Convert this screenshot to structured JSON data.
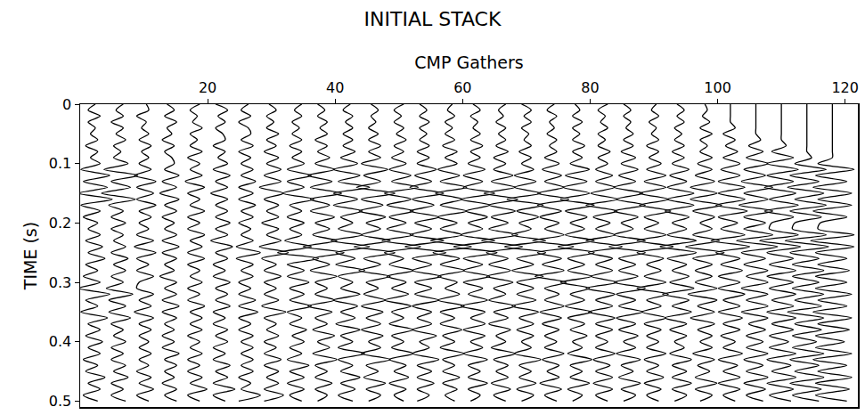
{
  "chart_data": {
    "type": "wiggle",
    "title": "INITIAL STACK",
    "x_label": "CMP Gathers",
    "y_label": "TIME (s)",
    "color": "#000000",
    "grid": false,
    "xlim": [
      0,
      122
    ],
    "ylim": [
      0.51,
      0
    ],
    "xticks": [
      20,
      40,
      60,
      80,
      100,
      120
    ],
    "yticks": [
      0,
      0.1,
      0.2,
      0.3,
      0.4,
      0.5
    ],
    "x": [
      2,
      6,
      10,
      14,
      18,
      22,
      26,
      30,
      34,
      38,
      42,
      46,
      50,
      54,
      58,
      62,
      66,
      70,
      74,
      78,
      82,
      86,
      90,
      94,
      98,
      102,
      106,
      110,
      114,
      118
    ],
    "y": [
      0,
      0.01,
      0.02,
      0.03,
      0.04,
      0.05,
      0.06,
      0.07,
      0.08,
      0.09,
      0.1,
      0.11,
      0.12,
      0.13,
      0.14,
      0.15,
      0.16,
      0.17,
      0.18,
      0.19,
      0.2,
      0.21,
      0.22,
      0.23,
      0.24,
      0.25,
      0.26,
      0.27,
      0.28,
      0.29,
      0.3,
      0.31,
      0.32,
      0.33,
      0.34,
      0.35,
      0.36,
      0.37,
      0.38,
      0.39,
      0.4,
      0.41,
      0.42,
      0.43,
      0.44,
      0.45,
      0.46,
      0.47,
      0.48,
      0.49,
      0.5
    ],
    "amplitudes": [
      [
        1,
        -2,
        3,
        -2,
        1,
        -1,
        2,
        -3,
        2,
        -1,
        3,
        -5,
        7,
        -4,
        6,
        -6,
        8,
        -5,
        3,
        -4,
        2,
        -2,
        3,
        -3,
        4,
        -2,
        5,
        -3,
        2,
        -4,
        3,
        -6,
        7,
        -3,
        2,
        -5,
        6,
        -2,
        3,
        -3,
        4,
        -2,
        3,
        -4,
        2,
        -3,
        5,
        -2,
        3,
        -4,
        2
      ],
      [
        2,
        -1,
        2,
        -3,
        2,
        -1,
        3,
        -2,
        1,
        -2,
        4,
        -6,
        8,
        -3,
        5,
        -7,
        7,
        -4,
        2,
        -3,
        3,
        -3,
        2,
        -2,
        3,
        -3,
        4,
        -2,
        3,
        -3,
        2,
        -5,
        6,
        -4,
        3,
        -4,
        5,
        -3,
        2,
        -2,
        3,
        -3,
        2,
        -3,
        3,
        -2,
        4,
        -3,
        2,
        -3,
        3
      ],
      [
        1,
        2,
        -3,
        1,
        -1,
        2,
        -2,
        3,
        -1,
        2,
        -2,
        3,
        -4,
        5,
        -3,
        4,
        -3,
        5,
        -2,
        3,
        -2,
        2,
        -3,
        4,
        -4,
        5,
        -3,
        2,
        -3,
        4,
        -2,
        -3,
        4,
        -2,
        3,
        -4,
        4,
        -2,
        3,
        -2,
        2,
        -2,
        3,
        -2,
        2,
        -3,
        3,
        -2,
        4,
        -3,
        2
      ],
      [
        -1,
        2,
        -2,
        3,
        -1,
        1,
        -3,
        2,
        -2,
        1,
        2,
        -2,
        4,
        -3,
        3,
        -4,
        4,
        -2,
        3,
        -3,
        2,
        -2,
        3,
        -3,
        4,
        -3,
        3,
        -2,
        2,
        -4,
        3,
        -2,
        3,
        -3,
        4,
        -3,
        3,
        -2,
        2,
        -3,
        2,
        -3,
        4,
        -2,
        3,
        -2,
        2,
        -3,
        3,
        -2,
        3
      ],
      [
        2,
        -2,
        1,
        -1,
        3,
        -2,
        1,
        -2,
        3,
        -3,
        2,
        -2,
        3,
        -4,
        4,
        -3,
        2,
        -2,
        4,
        -3,
        2,
        -3,
        4,
        -2,
        3,
        -3,
        4,
        -3,
        2,
        -2,
        3,
        -3,
        2,
        -3,
        4,
        -2,
        3,
        -2,
        3,
        -3,
        2,
        -2,
        3,
        -3,
        2,
        -3,
        3,
        -2,
        5,
        -3,
        2
      ],
      [
        -2,
        3,
        -1,
        2,
        -2,
        1,
        2,
        -3,
        2,
        -1,
        3,
        -3,
        4,
        -2,
        3,
        -4,
        3,
        -2,
        3,
        -2,
        4,
        -2,
        3,
        -4,
        5,
        -2,
        3,
        -3,
        2,
        -3,
        4,
        -2,
        3,
        -2,
        4,
        -3,
        2,
        -3,
        3,
        -2,
        3,
        -3,
        2,
        -3,
        4,
        -2,
        3,
        -3,
        6,
        -3,
        2
      ],
      [
        1,
        -2,
        2,
        -3,
        1,
        2,
        -2,
        3,
        -3,
        2,
        -2,
        3,
        -2,
        4,
        -3,
        3,
        -3,
        4,
        -2,
        3,
        -3,
        2,
        -2,
        3,
        -4,
        6,
        -4,
        3,
        -2,
        3,
        -3,
        2,
        -3,
        4,
        -3,
        5,
        -3,
        2,
        -3,
        3,
        -2,
        3,
        -2,
        3,
        -2,
        3,
        -3,
        2,
        -2,
        6,
        -3,
        2
      ],
      [
        -1,
        2,
        -2,
        1,
        -2,
        3,
        -2,
        2,
        -3,
        3,
        -2,
        4,
        -3,
        4,
        -5,
        5,
        -3,
        3,
        -2,
        3,
        -4,
        3,
        -2,
        4,
        -5,
        7,
        -4,
        2,
        -3,
        4,
        -3,
        2,
        -3,
        3,
        -4,
        6,
        -3,
        2,
        -2,
        3,
        -3,
        2,
        -3,
        4,
        -3,
        3,
        -2,
        3,
        -3,
        5,
        -3,
        2
      ],
      [
        2,
        -1,
        2,
        -2,
        1,
        -2,
        2,
        -3,
        2,
        -2,
        3,
        -4,
        6,
        -4,
        3,
        -6,
        7,
        -3,
        2,
        -4,
        3,
        -3,
        2,
        -5,
        6,
        -8,
        9,
        -4,
        3,
        -4,
        5,
        -3,
        3,
        -3,
        6,
        -4,
        2,
        -3,
        4,
        -2,
        3,
        -3,
        2,
        -4,
        5,
        -3,
        3,
        -4,
        3,
        -3,
        2
      ],
      [
        -2,
        1,
        -2,
        2,
        -1,
        2,
        -3,
        2,
        -2,
        3,
        -3,
        5,
        -6,
        4,
        -5,
        8,
        -5,
        3,
        -5,
        5,
        -3,
        3,
        -4,
        6,
        -8,
        9,
        -4,
        3,
        -5,
        6,
        -3,
        2,
        -3,
        5,
        -6,
        4,
        -3,
        2,
        -4,
        5,
        -2,
        3,
        -4,
        6,
        -3,
        2,
        -3,
        4,
        -3,
        2,
        -2
      ],
      [
        1,
        -2,
        2,
        -1,
        2,
        -2,
        2,
        -2,
        3,
        -3,
        4,
        -6,
        5,
        -4,
        9,
        -6,
        4,
        -6,
        6,
        -3,
        2,
        -4,
        6,
        -7,
        9,
        -5,
        3,
        -5,
        7,
        -4,
        2,
        -3,
        5,
        -6,
        4,
        -3,
        3,
        -5,
        5,
        -3,
        2,
        -4,
        7,
        -4,
        2,
        -3,
        5,
        -3,
        3,
        -4,
        2
      ],
      [
        -1,
        2,
        -1,
        1,
        -2,
        2,
        -2,
        3,
        -2,
        3,
        -5,
        6,
        -4,
        3,
        -7,
        9,
        -5,
        4,
        -6,
        5,
        -3,
        3,
        -5,
        7,
        -8,
        9,
        -4,
        3,
        -6,
        7,
        -3,
        2,
        -4,
        5,
        -5,
        4,
        -3,
        3,
        -5,
        4,
        -2,
        3,
        -5,
        7,
        -3,
        2,
        -4,
        5,
        -3,
        3,
        -2
      ],
      [
        2,
        -2,
        1,
        -2,
        2,
        -1,
        3,
        -2,
        2,
        -3,
        3,
        -4,
        5,
        -3,
        8,
        -6,
        5,
        -5,
        6,
        -4,
        3,
        -5,
        6,
        -7,
        9,
        -6,
        2,
        -4,
        6,
        -5,
        3,
        -3,
        4,
        -6,
        5,
        -3,
        2,
        -4,
        6,
        -3,
        2,
        -3,
        6,
        -4,
        3,
        -2,
        4,
        -4,
        3,
        -2,
        2
      ],
      [
        -2,
        1,
        -2,
        2,
        -2,
        1,
        -2,
        2,
        -3,
        2,
        -3,
        5,
        -4,
        3,
        -6,
        8,
        -5,
        4,
        -6,
        6,
        -4,
        3,
        -6,
        8,
        -8,
        9,
        -5,
        3,
        -5,
        7,
        -4,
        3,
        -4,
        6,
        -5,
        3,
        -3,
        3,
        -5,
        5,
        -2,
        2,
        -5,
        6,
        -3,
        3,
        -3,
        4,
        -3,
        2,
        -3
      ],
      [
        1,
        -1,
        2,
        -2,
        1,
        -2,
        2,
        -3,
        3,
        -2,
        3,
        -5,
        4,
        -4,
        7,
        -6,
        5,
        -4,
        7,
        -5,
        3,
        -4,
        5,
        -8,
        9,
        -7,
        4,
        -4,
        6,
        -5,
        3,
        -2,
        4,
        -5,
        6,
        -4,
        2,
        -4,
        5,
        -3,
        2,
        -4,
        6,
        -3,
        2,
        -3,
        4,
        -3,
        3,
        -2,
        2
      ],
      [
        -1,
        2,
        -2,
        1,
        -1,
        2,
        -2,
        3,
        -2,
        2,
        -3,
        4,
        -5,
        3,
        -5,
        8,
        -6,
        6,
        -4,
        5,
        -3,
        3,
        -6,
        8,
        -9,
        9,
        -5,
        3,
        -5,
        6,
        -5,
        3,
        -3,
        5,
        -6,
        4,
        -2,
        4,
        -5,
        4,
        -2,
        3,
        -5,
        5,
        -3,
        2,
        -3,
        5,
        -3,
        2,
        -2
      ],
      [
        2,
        -1,
        1,
        -2,
        2,
        -1,
        2,
        -2,
        3,
        -3,
        2,
        -3,
        5,
        -4,
        6,
        -7,
        7,
        -5,
        6,
        -4,
        3,
        -5,
        7,
        -8,
        9,
        -6,
        3,
        -5,
        4,
        -6,
        5,
        -3,
        2,
        -5,
        6,
        -3,
        3,
        -5,
        4,
        -2,
        2,
        -4,
        6,
        -3,
        3,
        -2,
        3,
        -4,
        4,
        -3,
        2
      ],
      [
        -2,
        2,
        -1,
        2,
        -2,
        1,
        -1,
        2,
        -3,
        2,
        -2,
        3,
        -5,
        4,
        -5,
        6,
        -8,
        7,
        -4,
        5,
        -3,
        2,
        -6,
        8,
        -9,
        8,
        -4,
        3,
        -6,
        7,
        -4,
        3,
        -4,
        4,
        -6,
        5,
        -3,
        3,
        -4,
        3,
        -2,
        2,
        -5,
        6,
        -3,
        2,
        -3,
        4,
        -4,
        3,
        -2
      ],
      [
        1,
        -2,
        2,
        -1,
        1,
        -2,
        2,
        -1,
        2,
        -3,
        3,
        -4,
        4,
        -3,
        5,
        -6,
        7,
        -6,
        4,
        -5,
        3,
        -3,
        5,
        -8,
        9,
        -6,
        4,
        -4,
        5,
        -7,
        6,
        -3,
        3,
        -3,
        5,
        -5,
        4,
        -4,
        3,
        -3,
        2,
        -3,
        5,
        -4,
        3,
        -2,
        3,
        -5,
        4,
        -3,
        2
      ],
      [
        -1,
        1,
        -2,
        2,
        -2,
        1,
        -2,
        3,
        -2,
        2,
        -3,
        5,
        -5,
        4,
        -6,
        5,
        -7,
        7,
        -5,
        4,
        -3,
        3,
        -5,
        7,
        -8,
        7,
        -4,
        3,
        -4,
        6,
        -7,
        5,
        -3,
        3,
        -5,
        6,
        -4,
        3,
        -3,
        4,
        -2,
        2,
        -4,
        6,
        -3,
        2,
        -3,
        5,
        -4,
        2,
        -2
      ],
      [
        2,
        -2,
        1,
        -1,
        2,
        -2,
        1,
        -2,
        3,
        -2,
        2,
        -3,
        4,
        -3,
        5,
        -5,
        6,
        -7,
        6,
        -4,
        3,
        -3,
        5,
        -7,
        8,
        -6,
        4,
        -3,
        4,
        -5,
        6,
        -7,
        5,
        -3,
        4,
        -6,
        5,
        -3,
        4,
        -3,
        2,
        -3,
        5,
        -4,
        3,
        -3,
        4,
        -4,
        4,
        -3,
        2
      ],
      [
        -2,
        1,
        -2,
        1,
        -1,
        2,
        -2,
        2,
        -3,
        3,
        -3,
        4,
        -4,
        3,
        -6,
        6,
        -5,
        7,
        -6,
        4,
        -3,
        2,
        -6,
        7,
        -8,
        7,
        -4,
        3,
        -4,
        4,
        -6,
        7,
        -5,
        3,
        -4,
        6,
        -5,
        3,
        -4,
        4,
        -2,
        3,
        -5,
        5,
        -3,
        2,
        -4,
        5,
        -3,
        3,
        -2
      ],
      [
        1,
        -1,
        2,
        -2,
        1,
        -1,
        2,
        -3,
        2,
        -2,
        3,
        -3,
        5,
        -4,
        5,
        -6,
        6,
        -6,
        7,
        -4,
        2,
        -4,
        5,
        -7,
        8,
        -7,
        4,
        -3,
        3,
        -4,
        5,
        -7,
        6,
        -3,
        3,
        -5,
        5,
        -4,
        3,
        -3,
        2,
        -3,
        5,
        -4,
        2,
        -3,
        4,
        -4,
        3,
        -3,
        2
      ],
      [
        -1,
        2,
        -1,
        2,
        -2,
        1,
        -2,
        2,
        -3,
        2,
        -3,
        4,
        -4,
        3,
        -5,
        6,
        -5,
        6,
        -6,
        4,
        -3,
        3,
        -5,
        7,
        -8,
        7,
        -5,
        3,
        -3,
        4,
        -4,
        6,
        -7,
        4,
        -3,
        5,
        -6,
        3,
        -4,
        3,
        -2,
        2,
        -4,
        5,
        -3,
        3,
        -3,
        5,
        -3,
        3,
        -2
      ],
      [
        0,
        1,
        -1,
        2,
        -2,
        3,
        -2,
        1,
        -2,
        3,
        -3,
        3,
        -4,
        4,
        -6,
        5,
        -6,
        7,
        -5,
        4,
        -2,
        3,
        -5,
        6,
        -8,
        8,
        -5,
        3,
        -4,
        3,
        -4,
        5,
        -7,
        5,
        -3,
        4,
        -6,
        4,
        -3,
        3,
        -2,
        3,
        -5,
        4,
        -3,
        2,
        -4,
        5,
        -4,
        3,
        -2
      ],
      [
        0,
        0,
        0,
        0,
        2,
        -3,
        2,
        -2,
        3,
        -3,
        4,
        -4,
        4,
        -5,
        6,
        -5,
        6,
        -6,
        7,
        -5,
        3,
        -4,
        6,
        -8,
        8,
        -6,
        4,
        -4,
        5,
        -5,
        4,
        -5,
        6,
        -3,
        4,
        -5,
        5,
        -3,
        4,
        -4,
        2,
        -3,
        5,
        -5,
        3,
        -3,
        4,
        -5,
        4,
        -3,
        2
      ],
      [
        0,
        0,
        0,
        0,
        0,
        0,
        2,
        -3,
        3,
        -4,
        5,
        -5,
        4,
        -6,
        7,
        -5,
        5,
        -7,
        7,
        -5,
        4,
        -5,
        7,
        -8,
        9,
        -6,
        4,
        -5,
        5,
        -4,
        5,
        -6,
        5,
        -4,
        5,
        -6,
        5,
        -3,
        4,
        -4,
        3,
        -4,
        5,
        -5,
        3,
        -4,
        5,
        -5,
        4,
        -4,
        3
      ],
      [
        0,
        0,
        0,
        0,
        0,
        0,
        0,
        2,
        -4,
        5,
        -6,
        7,
        -6,
        5,
        -7,
        6,
        -5,
        7,
        -7,
        5,
        -4,
        -5,
        7,
        -9,
        8,
        -6,
        5,
        -5,
        6,
        -6,
        5,
        -5,
        6,
        -4,
        5,
        -6,
        6,
        -4,
        5,
        -5,
        3,
        -5,
        6,
        -6,
        4,
        -4,
        6,
        -6,
        5,
        -5,
        4
      ],
      [
        0,
        0,
        0,
        0,
        0,
        0,
        0,
        0,
        0,
        2,
        -5,
        8,
        -7,
        5,
        -8,
        7,
        -5,
        8,
        -7,
        6,
        -5,
        -6,
        8,
        -9,
        9,
        -7,
        5,
        -6,
        7,
        -6,
        5,
        -6,
        7,
        -5,
        6,
        -8,
        7,
        -5,
        6,
        -6,
        4,
        -6,
        7,
        -7,
        5,
        -5,
        7,
        -7,
        6,
        -6,
        5
      ],
      [
        0,
        0,
        0,
        0,
        0,
        0,
        0,
        0,
        0,
        0,
        -6,
        9,
        -7,
        6,
        -8,
        8,
        -6,
        8,
        -8,
        6,
        -5,
        -6,
        9,
        -9,
        9,
        -7,
        6,
        -6,
        7,
        -7,
        6,
        -7,
        8,
        -6,
        6,
        -8,
        8,
        -6,
        7,
        -7,
        5,
        -7,
        8,
        -8,
        6,
        -6,
        8,
        -7,
        7,
        -7,
        6
      ]
    ]
  }
}
